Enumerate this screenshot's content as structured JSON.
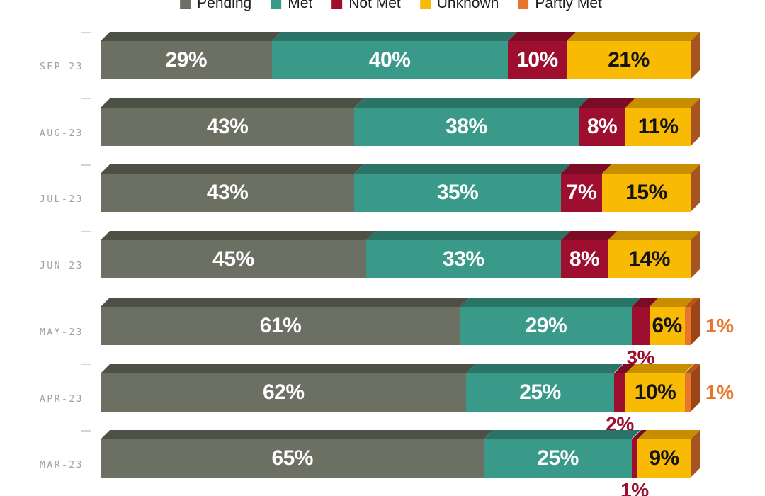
{
  "legend": {
    "position": "top",
    "items": [
      {
        "label": "Pending",
        "color": "#6B7063",
        "top_color": "#4D5045",
        "side_color": "#3E4138",
        "label_color": "#FFFFFF"
      },
      {
        "label": "Met",
        "color": "#3A9A89",
        "top_color": "#297466",
        "side_color": "#215E53",
        "label_color": "#FFFFFF"
      },
      {
        "label": "Not Met",
        "color": "#9E0E2F",
        "top_color": "#7C0B25",
        "side_color": "#63081D",
        "label_color": "#FFFFFF"
      },
      {
        "label": "Unknown",
        "color": "#F9BA03",
        "top_color": "#C78F00",
        "side_color": "#A85420",
        "label_color": "#141414"
      },
      {
        "label": "Partly Met",
        "color": "#E8752C",
        "top_color": "#B5581E",
        "side_color": "#9C4517",
        "label_color": "#141414"
      }
    ]
  },
  "axis": {
    "line_color": "#d5d5d3",
    "label_color": "#9fa3a1"
  },
  "outside_labels": {
    "not_met_below_color": "#9E0E2F",
    "partly_met_right_color": "#E8752C",
    "inside_threshold_pct": 5
  },
  "chart_data": {
    "type": "bar",
    "orientation": "horizontal",
    "stacked": true,
    "unit": "%",
    "xlim": [
      0,
      100
    ],
    "grid": false,
    "legend_position": "top",
    "categories": [
      "SEP-23",
      "AUG-23",
      "JUL-23",
      "JUN-23",
      "MAY-23",
      "APR-23",
      "MAR-23"
    ],
    "series": [
      {
        "name": "Pending",
        "values": [
          29,
          43,
          43,
          45,
          61,
          62,
          65
        ]
      },
      {
        "name": "Met",
        "values": [
          40,
          38,
          35,
          33,
          29,
          25,
          25
        ]
      },
      {
        "name": "Not Met",
        "values": [
          10,
          8,
          7,
          8,
          3,
          2,
          1
        ]
      },
      {
        "name": "Unknown",
        "values": [
          21,
          11,
          15,
          14,
          6,
          10,
          9
        ]
      },
      {
        "name": "Partly Met",
        "values": [
          0,
          0,
          0,
          0,
          1,
          1,
          0
        ]
      }
    ]
  }
}
